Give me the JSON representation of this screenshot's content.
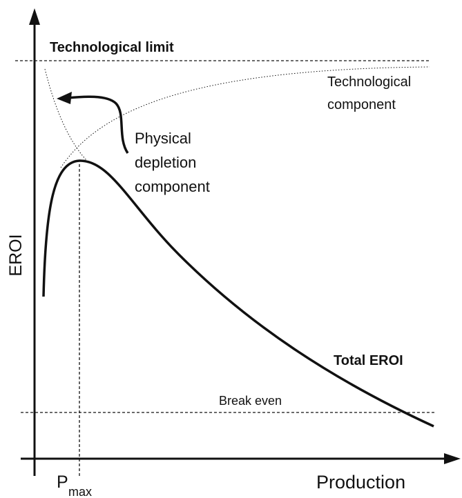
{
  "axes": {
    "y_label": "EROI",
    "x_label": "Production",
    "x_marker": {
      "main": "P",
      "sub": "max"
    }
  },
  "lines": {
    "upper": "Technological limit",
    "lower": "Break even"
  },
  "curves": {
    "technological": [
      "Technological",
      "component"
    ],
    "physical": [
      "Physical",
      "depletion",
      "component"
    ],
    "total": "Total EROI"
  }
}
